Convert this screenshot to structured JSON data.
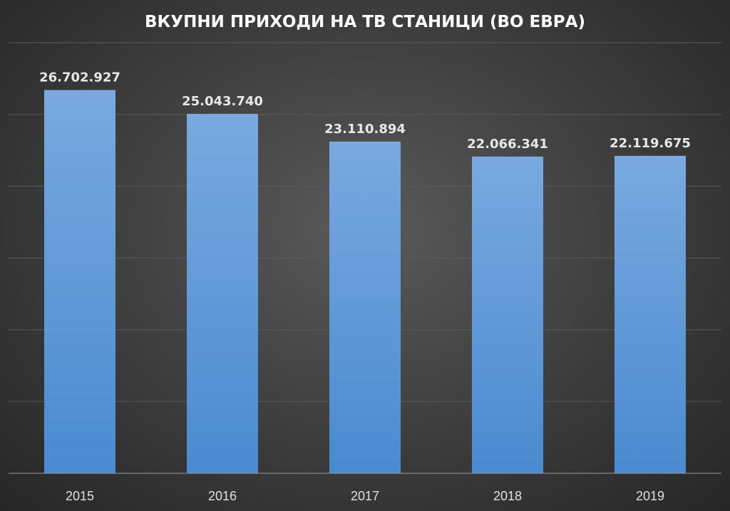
{
  "chart_data": {
    "type": "bar",
    "title": "ВКУПНИ ПРИХОДИ НА ТВ СТАНИЦИ (ВО ЕВРА)",
    "categories": [
      "2015",
      "2016",
      "2017",
      "2018",
      "2019"
    ],
    "values": [
      26702927,
      25043740,
      23110894,
      22066341,
      22119675
    ],
    "data_labels": [
      "26.702.927",
      "25.043.740",
      "23.110.894",
      "22.066.341",
      "22.119.675"
    ],
    "xlabel": "",
    "ylabel": "",
    "ylim": [
      0,
      30000000
    ],
    "grid": true,
    "legend": "none",
    "colors": {
      "bar_top": "#79a9df",
      "bar_bottom": "#4a8ad0"
    }
  }
}
